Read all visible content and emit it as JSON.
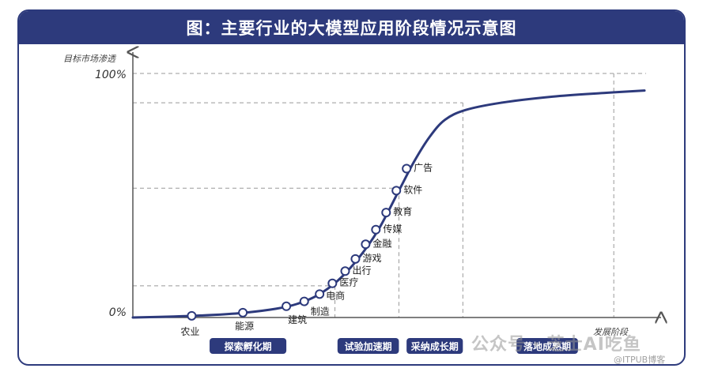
{
  "title": "图：主要行业的大模型应用阶段情况示意图",
  "watermark": {
    "main": "公众号 · 芝士AI吃鱼",
    "sub": "@ITPUB博客"
  },
  "colors": {
    "navy": "#2d3a7c",
    "grid": "#aaaaaa"
  },
  "chart_data": {
    "type": "line",
    "title": "图：主要行业的大模型应用阶段情况示意图",
    "xlabel": "发展阶段",
    "ylabel": "目标市场渗透",
    "y_tick_labels": [
      "0%",
      "100%"
    ],
    "ylim": [
      0,
      100
    ],
    "xlim": [
      0,
      100
    ],
    "grid": "dashed-reference-lines",
    "curve": [
      {
        "x": 0,
        "y": 0
      },
      {
        "x": 8,
        "y": 0.4
      },
      {
        "x": 16,
        "y": 1.1
      },
      {
        "x": 22,
        "y": 2.0
      },
      {
        "x": 28,
        "y": 3.6
      },
      {
        "x": 32,
        "y": 5.5
      },
      {
        "x": 36,
        "y": 9.0
      },
      {
        "x": 40,
        "y": 15
      },
      {
        "x": 44,
        "y": 24
      },
      {
        "x": 48,
        "y": 36
      },
      {
        "x": 52,
        "y": 52
      },
      {
        "x": 55,
        "y": 64
      },
      {
        "x": 58,
        "y": 74
      },
      {
        "x": 61,
        "y": 81
      },
      {
        "x": 65,
        "y": 85
      },
      {
        "x": 72,
        "y": 88
      },
      {
        "x": 82,
        "y": 90.5
      },
      {
        "x": 92,
        "y": 92
      },
      {
        "x": 100,
        "y": 93
      }
    ],
    "points": [
      {
        "label": "农业",
        "x": 11.5,
        "y": 0.7
      },
      {
        "label": "能源",
        "x": 21.5,
        "y": 2.0
      },
      {
        "label": "建筑",
        "x": 30.0,
        "y": 4.6
      },
      {
        "label": "制造",
        "x": 33.5,
        "y": 6.6
      },
      {
        "label": "电商",
        "x": 36.5,
        "y": 9.6
      },
      {
        "label": "医疗",
        "x": 39.0,
        "y": 14.0
      },
      {
        "label": "出行",
        "x": 41.5,
        "y": 19.0
      },
      {
        "label": "游戏",
        "x": 43.5,
        "y": 24.0
      },
      {
        "label": "金融",
        "x": 45.5,
        "y": 30.0
      },
      {
        "label": "传媒",
        "x": 47.5,
        "y": 36.0
      },
      {
        "label": "教育",
        "x": 49.5,
        "y": 43.0
      },
      {
        "label": "软件",
        "x": 51.5,
        "y": 52.0
      },
      {
        "label": "广告",
        "x": 53.5,
        "y": 61.0
      }
    ],
    "reference_lines_y": [
      13,
      53,
      88
    ],
    "reference_lines_x": [
      52,
      64.5,
      94
    ],
    "stages": [
      {
        "label": "探索孵化期",
        "x_from": 15,
        "x_to": 30
      },
      {
        "label": "试验加速期",
        "x_from": 40,
        "x_to": 52
      },
      {
        "label": "采纳成长期",
        "x_from": 53.5,
        "x_to": 64.5
      },
      {
        "label": "落地成熟期",
        "x_from": 75,
        "x_to": 87
      }
    ]
  }
}
